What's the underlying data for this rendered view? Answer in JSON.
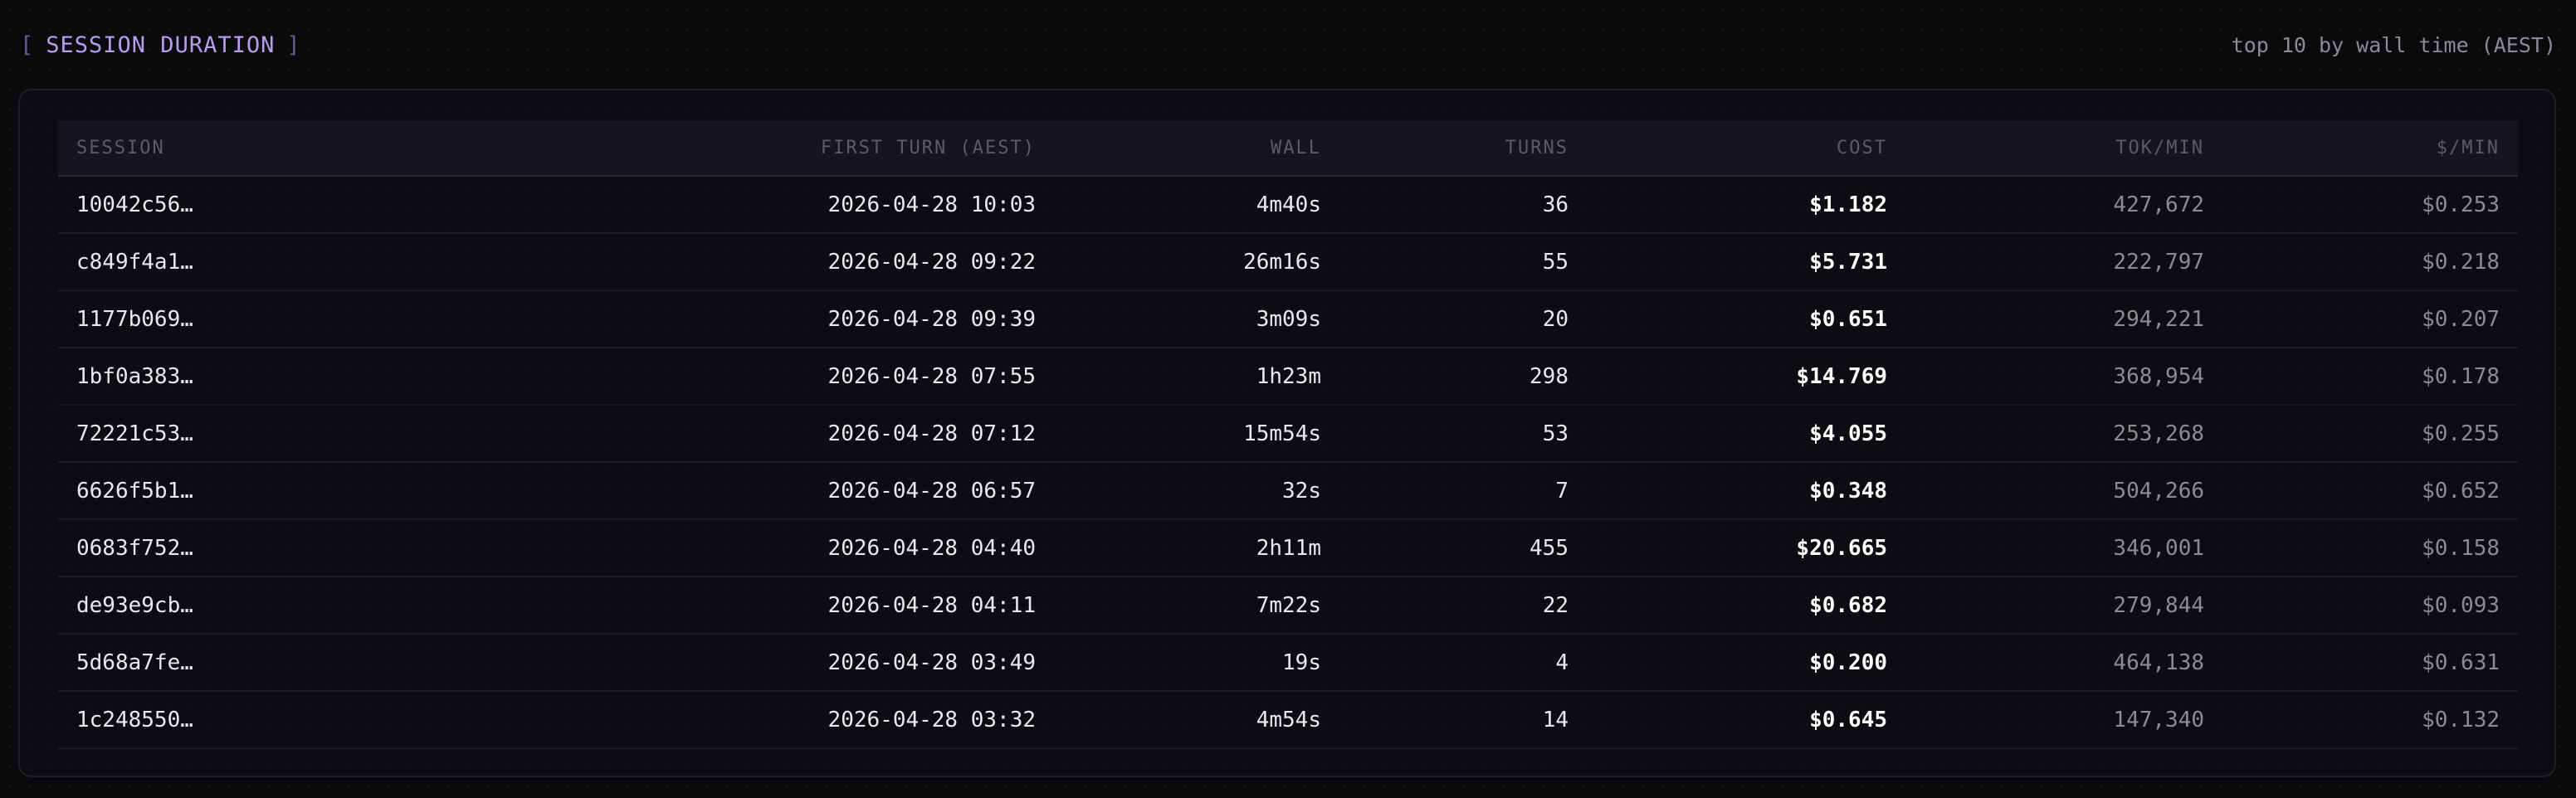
{
  "header": {
    "bracket_open": "[",
    "title": "SESSION DURATION",
    "bracket_close": "]",
    "subtitle": "top 10 by wall time (AEST)"
  },
  "table": {
    "columns": [
      "SESSION",
      "FIRST TURN (AEST)",
      "WALL",
      "TURNS",
      "COST",
      "TOK/MIN",
      "$/MIN"
    ],
    "rows": [
      {
        "session": "10042c56…",
        "first_turn": "2026-04-28 10:03",
        "wall": "4m40s",
        "turns": "36",
        "cost": "$1.182",
        "tok_min": "427,672",
        "usd_min": "$0.253"
      },
      {
        "session": "c849f4a1…",
        "first_turn": "2026-04-28 09:22",
        "wall": "26m16s",
        "turns": "55",
        "cost": "$5.731",
        "tok_min": "222,797",
        "usd_min": "$0.218"
      },
      {
        "session": "1177b069…",
        "first_turn": "2026-04-28 09:39",
        "wall": "3m09s",
        "turns": "20",
        "cost": "$0.651",
        "tok_min": "294,221",
        "usd_min": "$0.207"
      },
      {
        "session": "1bf0a383…",
        "first_turn": "2026-04-28 07:55",
        "wall": "1h23m",
        "turns": "298",
        "cost": "$14.769",
        "tok_min": "368,954",
        "usd_min": "$0.178"
      },
      {
        "session": "72221c53…",
        "first_turn": "2026-04-28 07:12",
        "wall": "15m54s",
        "turns": "53",
        "cost": "$4.055",
        "tok_min": "253,268",
        "usd_min": "$0.255"
      },
      {
        "session": "6626f5b1…",
        "first_turn": "2026-04-28 06:57",
        "wall": "32s",
        "turns": "7",
        "cost": "$0.348",
        "tok_min": "504,266",
        "usd_min": "$0.652"
      },
      {
        "session": "0683f752…",
        "first_turn": "2026-04-28 04:40",
        "wall": "2h11m",
        "turns": "455",
        "cost": "$20.665",
        "tok_min": "346,001",
        "usd_min": "$0.158"
      },
      {
        "session": "de93e9cb…",
        "first_turn": "2026-04-28 04:11",
        "wall": "7m22s",
        "turns": "22",
        "cost": "$0.682",
        "tok_min": "279,844",
        "usd_min": "$0.093"
      },
      {
        "session": "5d68a7fe…",
        "first_turn": "2026-04-28 03:49",
        "wall": "19s",
        "turns": "4",
        "cost": "$0.200",
        "tok_min": "464,138",
        "usd_min": "$0.631"
      },
      {
        "session": "1c248550…",
        "first_turn": "2026-04-28 03:32",
        "wall": "4m54s",
        "turns": "14",
        "cost": "$0.645",
        "tok_min": "147,340",
        "usd_min": "$0.132"
      }
    ]
  },
  "colors": {
    "background": "#0a0a0c",
    "accent": "#b79cf0",
    "bracket": "#6b5a92",
    "muted_text": "#8c8a97"
  }
}
